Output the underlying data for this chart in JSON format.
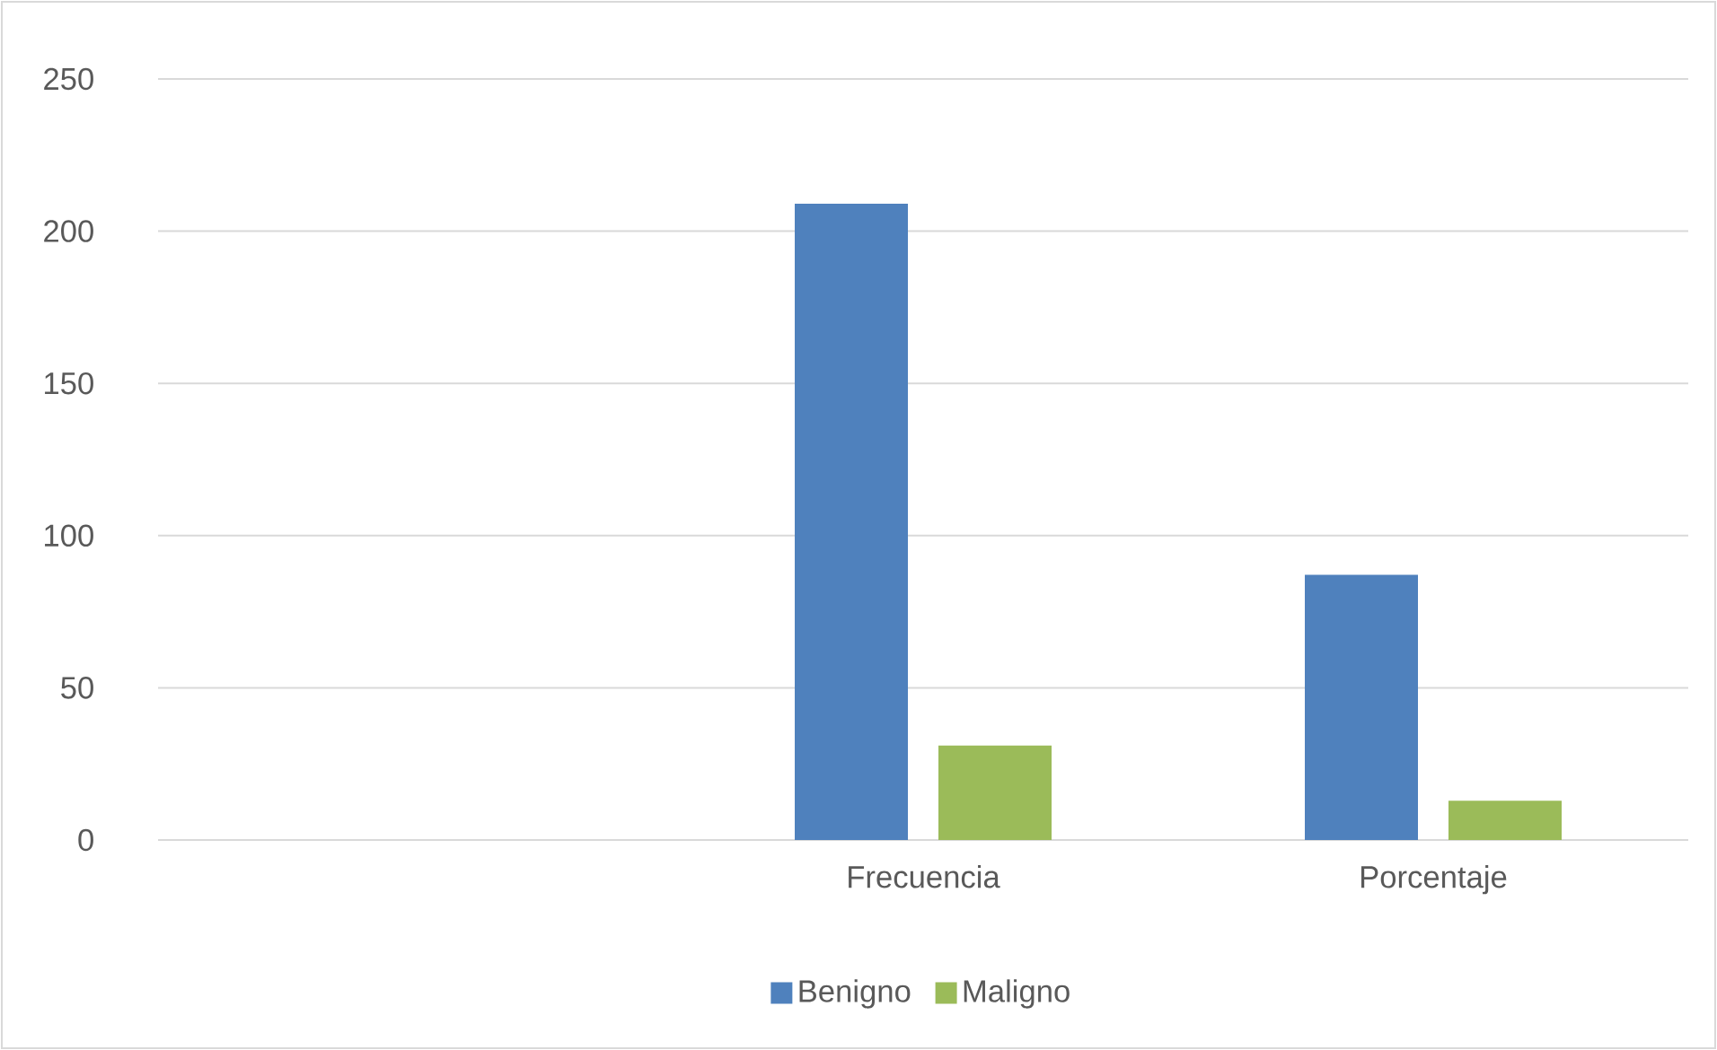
{
  "chart_data": {
    "type": "bar",
    "categories": [
      null,
      "Frecuencia",
      "Porcentaje"
    ],
    "series": [
      {
        "name": "Benigno",
        "color": "#4f81bd",
        "values": [
          null,
          209,
          87.1
        ]
      },
      {
        "name": "Maligno",
        "color": "#9bbb59",
        "values": [
          null,
          31,
          12.9
        ]
      }
    ],
    "ylim": [
      0,
      250
    ],
    "yticks": [
      0,
      50,
      100,
      150,
      200,
      250
    ],
    "grid": "y",
    "legend": "bottom"
  }
}
